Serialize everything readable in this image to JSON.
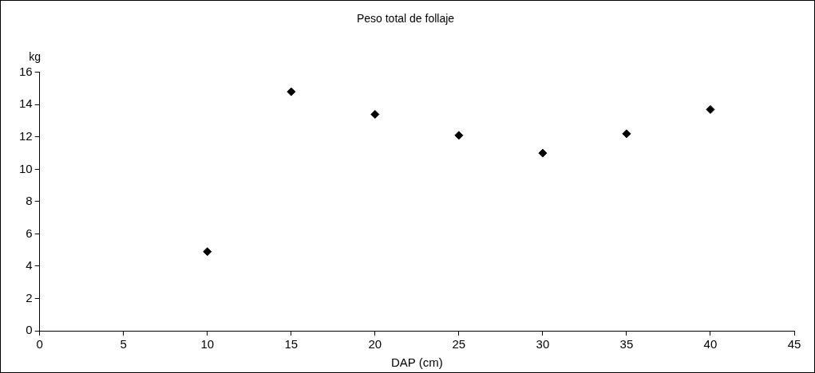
{
  "chart_data": {
    "type": "scatter",
    "title": "Peso total de follaje",
    "xlabel": "DAP (cm)",
    "ylabel": "kg",
    "x": [
      10,
      15,
      20,
      25,
      30,
      35,
      40
    ],
    "series": [
      {
        "color": "#000000",
        "values": [
          4.9,
          14.8,
          13.4,
          12.1,
          11.0,
          12.2,
          13.7
        ]
      }
    ],
    "xlim": [
      0,
      45
    ],
    "xticks": [
      0,
      5,
      10,
      15,
      20,
      25,
      30,
      35,
      40,
      45
    ],
    "ylim": [
      0,
      16
    ],
    "yticks": [
      0,
      2,
      4,
      6,
      8,
      10,
      12,
      14,
      16
    ],
    "marker": "diamond",
    "grid": false,
    "legend": false
  }
}
